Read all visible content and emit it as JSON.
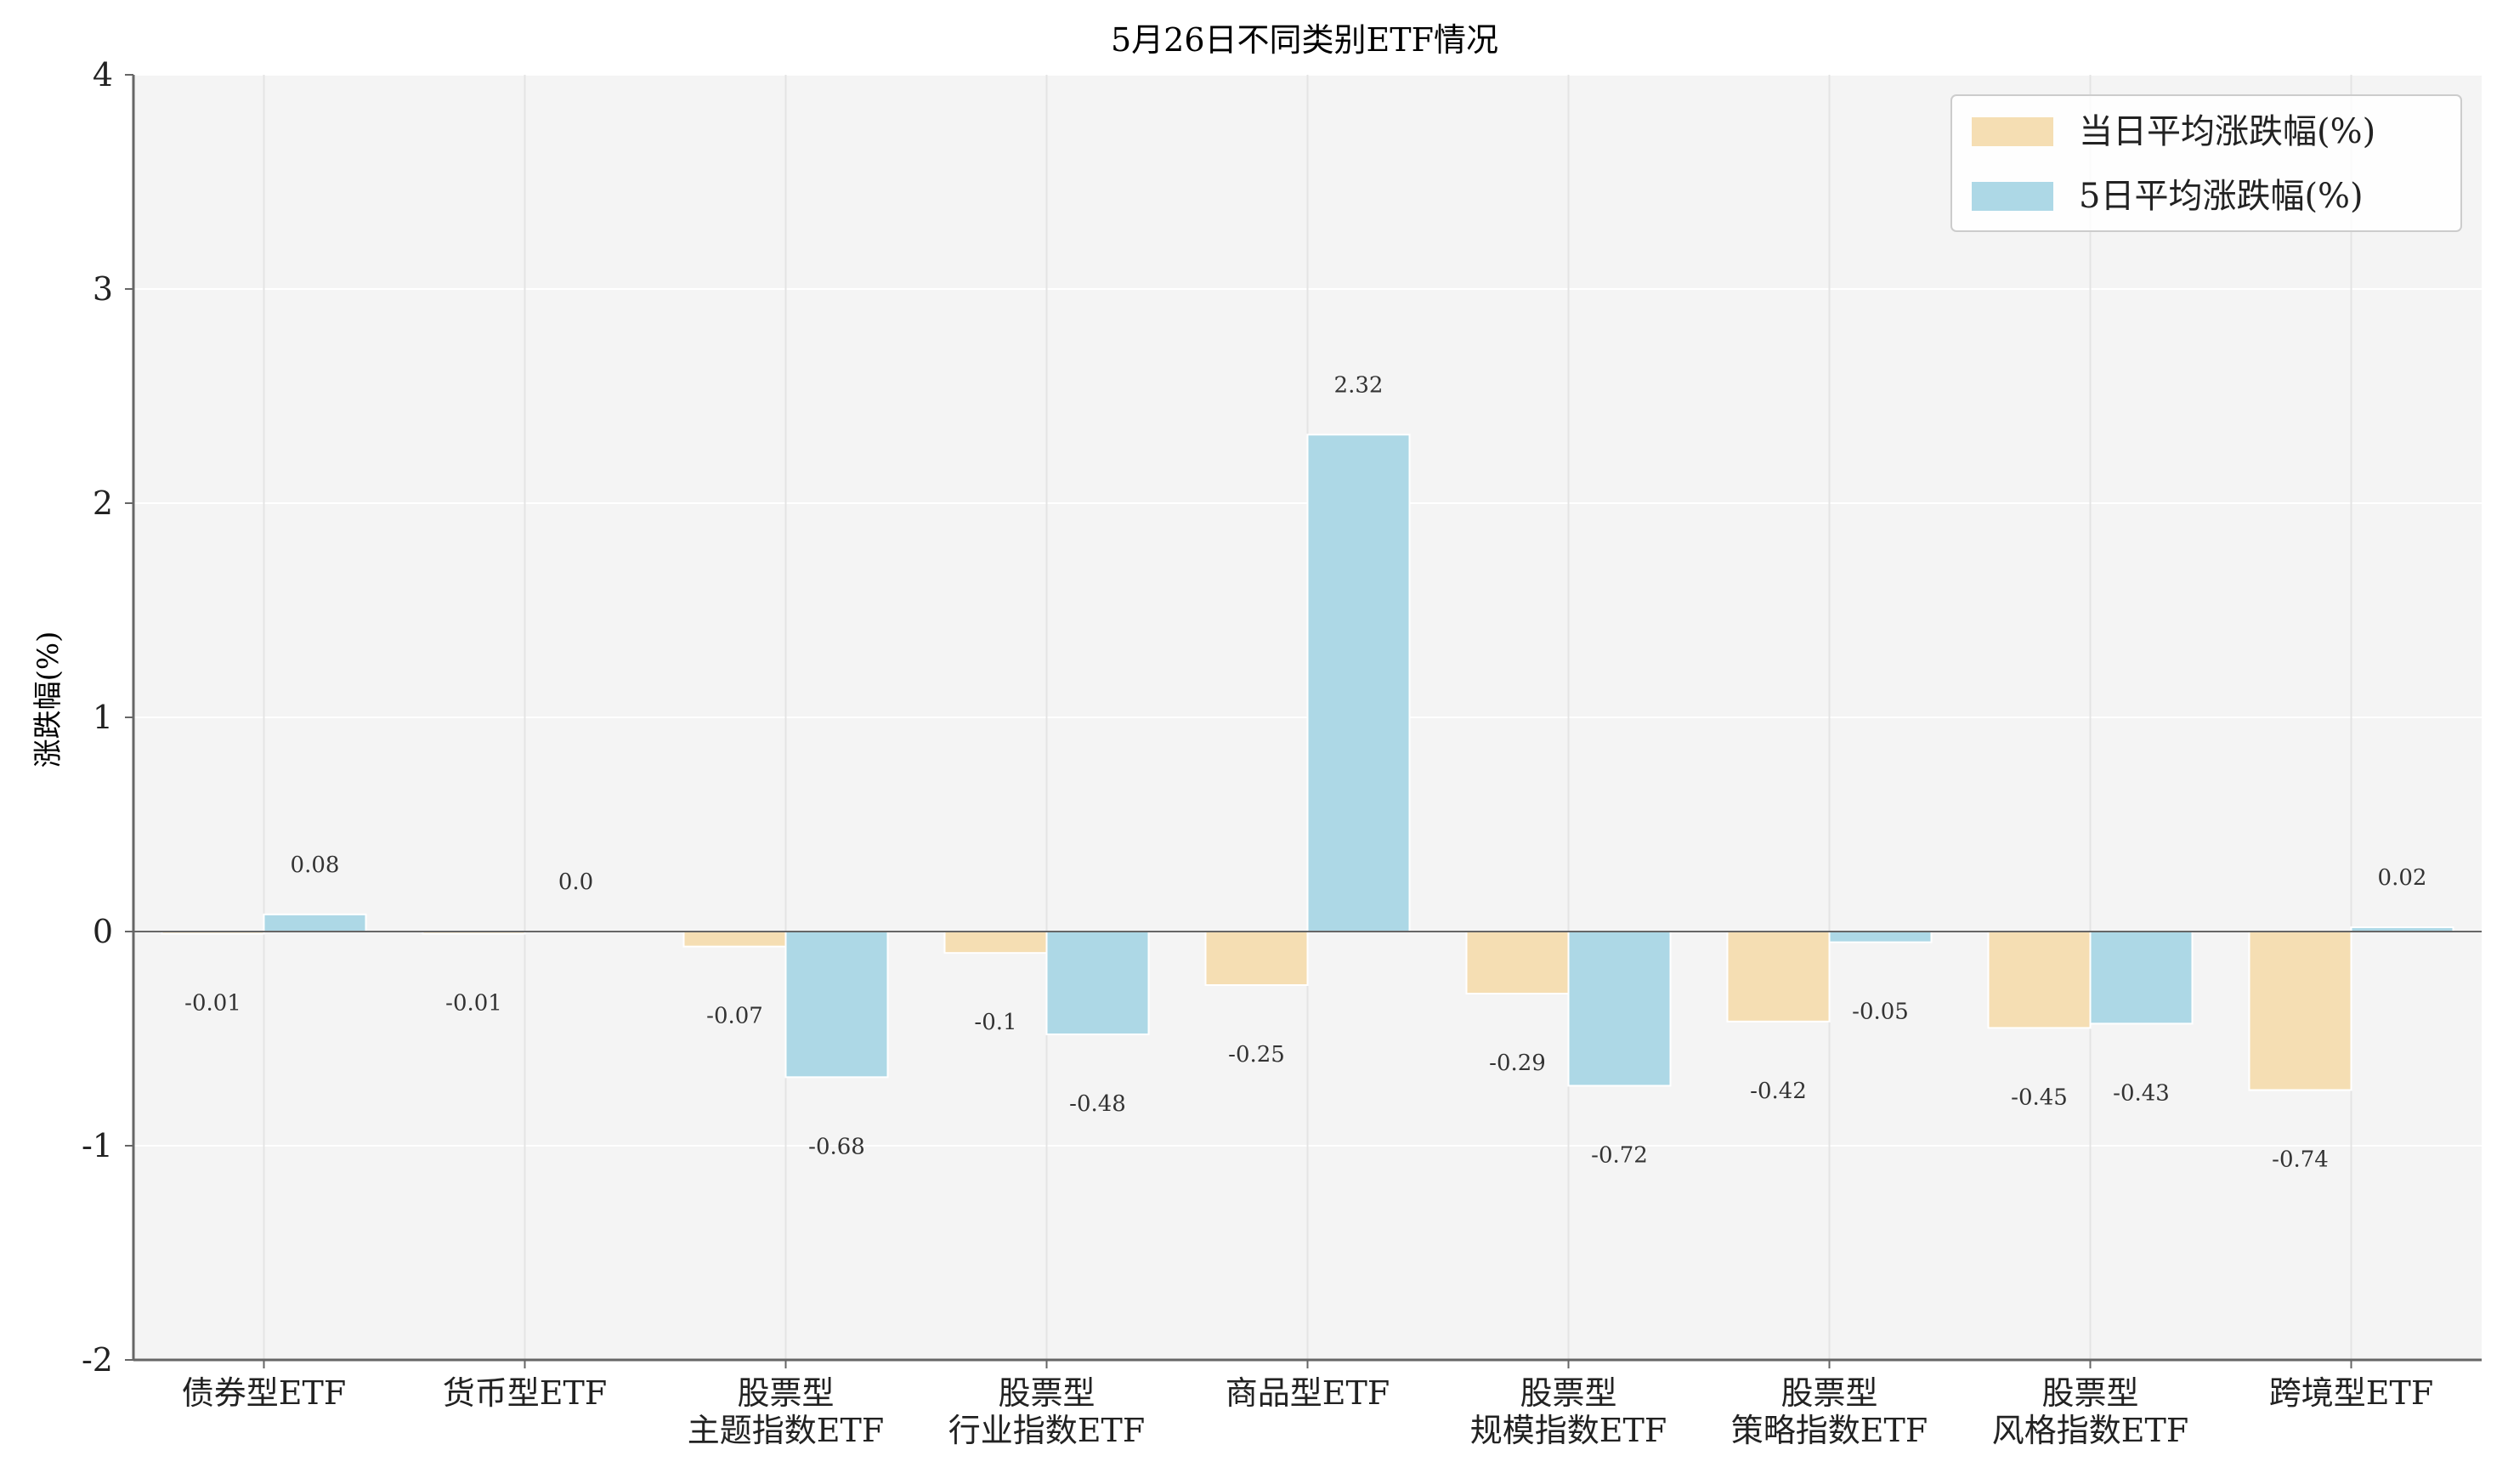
{
  "colors": {
    "plot_bg": "#f4f4f4",
    "grid": "#ffffff",
    "series_daily": "#f5deb3",
    "series_5day": "#add8e6",
    "axis": "#666666"
  },
  "chart_data": {
    "type": "bar",
    "title": "5月26日不同类别ETF情况",
    "xlabel": "",
    "ylabel": "涨跌幅(%)",
    "ylim": [
      -2,
      4
    ],
    "yticks": [
      "-2",
      "-1",
      "0",
      "1",
      "2",
      "3",
      "4"
    ],
    "grid": true,
    "legend_position": "top-right",
    "categories": [
      [
        "债券型ETF"
      ],
      [
        "货币型ETF"
      ],
      [
        "股票型",
        "主题指数ETF"
      ],
      [
        "股票型",
        "行业指数ETF"
      ],
      [
        "商品型ETF"
      ],
      [
        "股票型",
        "规模指数ETF"
      ],
      [
        "股票型",
        "策略指数ETF"
      ],
      [
        "股票型",
        "风格指数ETF"
      ],
      [
        "跨境型ETF"
      ]
    ],
    "series": [
      {
        "name": "当日平均涨跌幅(%)",
        "values": [
          -0.01,
          -0.01,
          -0.07,
          -0.1,
          -0.25,
          -0.29,
          -0.42,
          -0.45,
          -0.74
        ],
        "labels": [
          "-0.01",
          "-0.01",
          "-0.07",
          "-0.1",
          "-0.25",
          "-0.29",
          "-0.42",
          "-0.45",
          "-0.74"
        ]
      },
      {
        "name": "5日平均涨跌幅(%)",
        "values": [
          0.08,
          0.0,
          -0.68,
          -0.48,
          2.32,
          -0.72,
          -0.05,
          -0.43,
          0.02
        ],
        "labels": [
          "0.08",
          "0.0",
          "-0.68",
          "-0.48",
          "2.32",
          "-0.72",
          "-0.05",
          "-0.43",
          "0.02"
        ]
      }
    ]
  }
}
